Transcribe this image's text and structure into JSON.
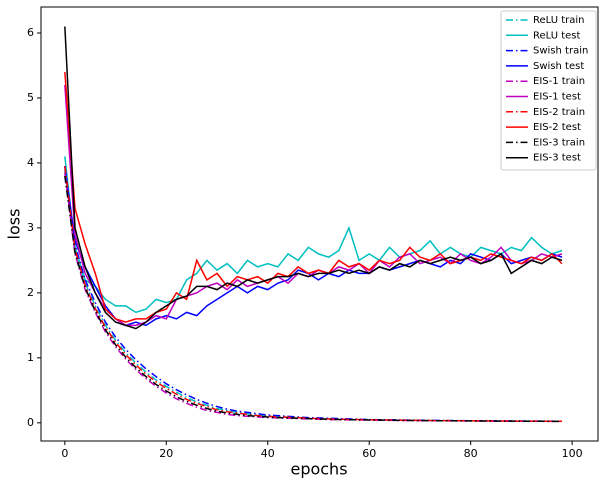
{
  "chart_data": {
    "type": "line",
    "x_label": "epochs",
    "y_label": "loss",
    "xlim": [
      -4.7,
      105.1
    ],
    "ylim": [
      -0.28,
      6.4
    ],
    "xticks": [
      0,
      20,
      40,
      60,
      80,
      100
    ],
    "yticks": [
      0,
      1,
      2,
      3,
      4,
      5,
      6
    ],
    "legend": "upper right",
    "x": [
      0,
      2,
      4,
      6,
      8,
      10,
      12,
      14,
      16,
      18,
      20,
      22,
      24,
      26,
      28,
      30,
      32,
      34,
      36,
      38,
      40,
      42,
      44,
      46,
      48,
      50,
      52,
      54,
      56,
      58,
      60,
      62,
      64,
      66,
      68,
      70,
      72,
      74,
      76,
      78,
      80,
      82,
      84,
      86,
      88,
      90,
      92,
      94,
      96,
      98
    ],
    "series": [
      {
        "name": "ReLU train",
        "color": "#00bfbf",
        "linestyle": "-.",
        "values": [
          3.9,
          2.7,
          2.15,
          1.8,
          1.5,
          1.27,
          1.08,
          0.92,
          0.78,
          0.66,
          0.56,
          0.47,
          0.39,
          0.32,
          0.27,
          0.22,
          0.19,
          0.16,
          0.14,
          0.12,
          0.11,
          0.1,
          0.09,
          0.08,
          0.075,
          0.07,
          0.065,
          0.06,
          0.055,
          0.05,
          0.048,
          0.046,
          0.044,
          0.042,
          0.04,
          0.038,
          0.036,
          0.034,
          0.033,
          0.032,
          0.031,
          0.03,
          0.029,
          0.028,
          0.027,
          0.026,
          0.025,
          0.025,
          0.024,
          0.024
        ]
      },
      {
        "name": "ReLU test",
        "color": "#00bfbf",
        "linestyle": "-",
        "values": [
          4.1,
          2.7,
          2.2,
          2.1,
          1.9,
          1.8,
          1.8,
          1.7,
          1.75,
          1.9,
          1.85,
          1.9,
          2.2,
          2.3,
          2.5,
          2.35,
          2.45,
          2.3,
          2.5,
          2.4,
          2.45,
          2.4,
          2.6,
          2.5,
          2.7,
          2.6,
          2.55,
          2.65,
          3.0,
          2.5,
          2.6,
          2.5,
          2.7,
          2.55,
          2.6,
          2.65,
          2.8,
          2.6,
          2.7,
          2.6,
          2.55,
          2.7,
          2.65,
          2.6,
          2.7,
          2.65,
          2.85,
          2.7,
          2.6,
          2.65
        ]
      },
      {
        "name": "Swish train",
        "color": "#0000ff",
        "linestyle": "-.",
        "values": [
          3.95,
          2.75,
          2.2,
          1.85,
          1.55,
          1.32,
          1.13,
          0.97,
          0.83,
          0.71,
          0.6,
          0.51,
          0.43,
          0.36,
          0.3,
          0.25,
          0.21,
          0.18,
          0.16,
          0.14,
          0.12,
          0.11,
          0.1,
          0.09,
          0.08,
          0.075,
          0.07,
          0.065,
          0.06,
          0.055,
          0.05,
          0.048,
          0.046,
          0.044,
          0.042,
          0.04,
          0.038,
          0.036,
          0.034,
          0.033,
          0.032,
          0.031,
          0.03,
          0.029,
          0.028,
          0.027,
          0.026,
          0.025,
          0.025,
          0.024
        ]
      },
      {
        "name": "Swish test",
        "color": "#0000ff",
        "linestyle": "-",
        "values": [
          3.95,
          2.8,
          2.4,
          2.1,
          1.8,
          1.6,
          1.5,
          1.55,
          1.5,
          1.6,
          1.65,
          1.6,
          1.7,
          1.65,
          1.8,
          1.9,
          2.0,
          2.1,
          2.0,
          2.1,
          2.05,
          2.15,
          2.2,
          2.35,
          2.3,
          2.2,
          2.3,
          2.25,
          2.35,
          2.3,
          2.3,
          2.4,
          2.35,
          2.4,
          2.45,
          2.5,
          2.45,
          2.4,
          2.5,
          2.45,
          2.6,
          2.55,
          2.5,
          2.6,
          2.45,
          2.5,
          2.55,
          2.5,
          2.6,
          2.55
        ]
      },
      {
        "name": "EIS-1 train",
        "color": "#bf00bf",
        "linestyle": "-.",
        "values": [
          3.85,
          2.6,
          2.05,
          1.7,
          1.4,
          1.17,
          0.98,
          0.82,
          0.68,
          0.56,
          0.46,
          0.37,
          0.3,
          0.24,
          0.19,
          0.16,
          0.13,
          0.11,
          0.1,
          0.09,
          0.08,
          0.075,
          0.07,
          0.065,
          0.06,
          0.055,
          0.05,
          0.048,
          0.046,
          0.044,
          0.042,
          0.04,
          0.038,
          0.036,
          0.034,
          0.033,
          0.032,
          0.031,
          0.03,
          0.029,
          0.028,
          0.027,
          0.026,
          0.025,
          0.025,
          0.024,
          0.024,
          0.023,
          0.023,
          0.022
        ]
      },
      {
        "name": "EIS-1 test",
        "color": "#bf00bf",
        "linestyle": "-",
        "values": [
          5.2,
          2.9,
          2.3,
          2.0,
          1.75,
          1.6,
          1.5,
          1.5,
          1.55,
          1.65,
          1.6,
          1.9,
          1.95,
          2.0,
          2.1,
          2.15,
          2.05,
          2.2,
          2.1,
          2.15,
          2.2,
          2.25,
          2.15,
          2.3,
          2.25,
          2.35,
          2.3,
          2.4,
          2.35,
          2.45,
          2.3,
          2.5,
          2.4,
          2.55,
          2.6,
          2.45,
          2.5,
          2.55,
          2.45,
          2.6,
          2.5,
          2.45,
          2.55,
          2.7,
          2.5,
          2.45,
          2.5,
          2.6,
          2.55,
          2.6
        ]
      },
      {
        "name": "EIS-2 train",
        "color": "#ff0000",
        "linestyle": "-.",
        "values": [
          3.95,
          2.68,
          2.12,
          1.76,
          1.47,
          1.24,
          1.05,
          0.89,
          0.75,
          0.63,
          0.53,
          0.44,
          0.36,
          0.3,
          0.25,
          0.2,
          0.17,
          0.15,
          0.13,
          0.11,
          0.1,
          0.09,
          0.085,
          0.08,
          0.07,
          0.065,
          0.06,
          0.055,
          0.052,
          0.05,
          0.047,
          0.045,
          0.043,
          0.041,
          0.039,
          0.037,
          0.035,
          0.034,
          0.033,
          0.032,
          0.031,
          0.03,
          0.029,
          0.028,
          0.027,
          0.026,
          0.025,
          0.025,
          0.024,
          0.024
        ]
      },
      {
        "name": "EIS-2 test",
        "color": "#ff0000",
        "linestyle": "-",
        "values": [
          5.4,
          3.3,
          2.75,
          2.3,
          1.75,
          1.6,
          1.55,
          1.6,
          1.6,
          1.7,
          1.75,
          2.0,
          1.9,
          2.5,
          2.2,
          2.3,
          2.1,
          2.25,
          2.2,
          2.25,
          2.15,
          2.3,
          2.25,
          2.4,
          2.3,
          2.35,
          2.3,
          2.5,
          2.4,
          2.45,
          2.35,
          2.5,
          2.45,
          2.5,
          2.7,
          2.55,
          2.5,
          2.6,
          2.45,
          2.5,
          2.55,
          2.5,
          2.6,
          2.55,
          2.5,
          2.45,
          2.55,
          2.5,
          2.6,
          2.45
        ]
      },
      {
        "name": "EIS-3 train",
        "color": "#000000",
        "linestyle": "-.",
        "values": [
          3.8,
          2.62,
          2.08,
          1.72,
          1.43,
          1.2,
          1.01,
          0.85,
          0.71,
          0.59,
          0.49,
          0.4,
          0.33,
          0.27,
          0.22,
          0.18,
          0.15,
          0.13,
          0.11,
          0.1,
          0.09,
          0.08,
          0.075,
          0.07,
          0.065,
          0.06,
          0.055,
          0.05,
          0.048,
          0.046,
          0.044,
          0.042,
          0.04,
          0.038,
          0.036,
          0.034,
          0.033,
          0.032,
          0.031,
          0.03,
          0.029,
          0.028,
          0.027,
          0.026,
          0.025,
          0.025,
          0.024,
          0.024,
          0.023,
          0.023
        ]
      },
      {
        "name": "EIS-3 test",
        "color": "#000000",
        "linestyle": "-",
        "values": [
          6.1,
          3.0,
          2.4,
          2.0,
          1.7,
          1.55,
          1.5,
          1.45,
          1.55,
          1.7,
          1.8,
          1.9,
          1.95,
          2.1,
          2.1,
          2.05,
          2.15,
          2.1,
          2.2,
          2.15,
          2.2,
          2.25,
          2.25,
          2.3,
          2.25,
          2.3,
          2.3,
          2.35,
          2.3,
          2.35,
          2.3,
          2.4,
          2.35,
          2.45,
          2.4,
          2.5,
          2.45,
          2.5,
          2.55,
          2.5,
          2.55,
          2.45,
          2.5,
          2.6,
          2.3,
          2.4,
          2.5,
          2.45,
          2.55,
          2.5
        ]
      }
    ]
  }
}
